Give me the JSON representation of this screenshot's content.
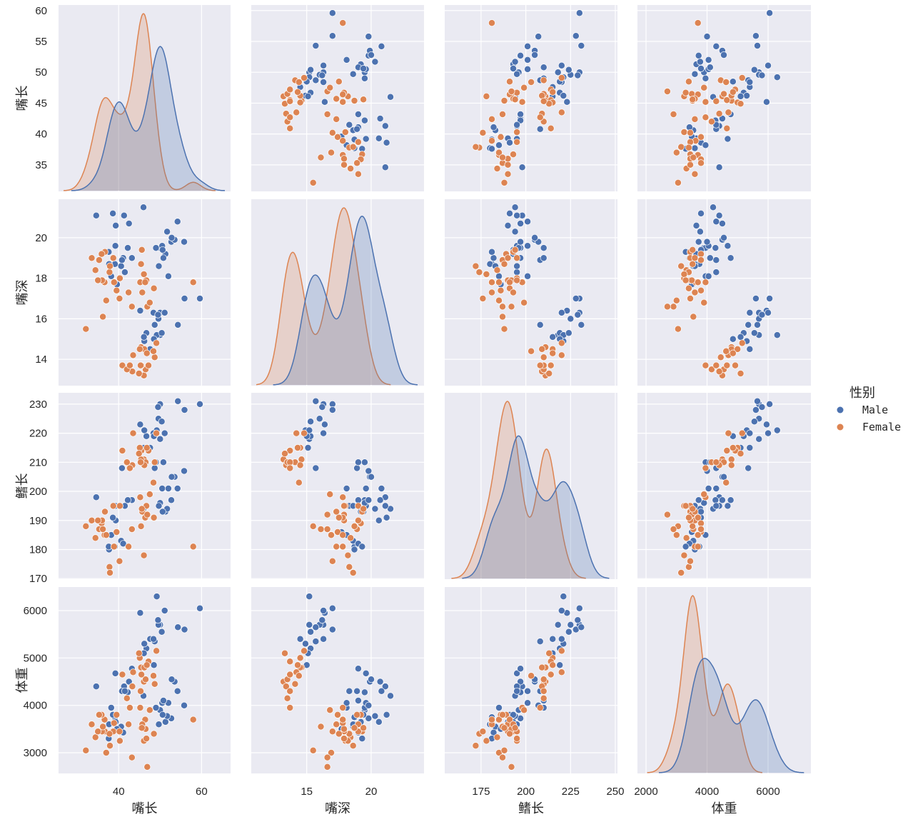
{
  "chart_data": {
    "type": "scatter",
    "subtype": "pairplot",
    "variables": [
      "嘴长",
      "嘴深",
      "鳍长",
      "体重"
    ],
    "axis_ranges": {
      "嘴长": [
        25.5,
        67
      ],
      "嘴深": [
        10.7,
        24.1
      ],
      "鳍长": [
        154.7,
        251.2
      ],
      "体重": [
        1719,
        7404
      ]
    },
    "y_ranges": {
      "嘴长": [
        30.7,
        60.9
      ],
      "嘴深": [
        12.7,
        21.9
      ],
      "鳍长": [
        169.8,
        233.9
      ],
      "体重": [
        2563,
        6497
      ]
    },
    "x_ticks": {
      "嘴长": [
        40,
        60
      ],
      "嘴深": [
        15,
        20
      ],
      "鳍长": [
        175,
        200,
        225,
        250
      ],
      "体重": [
        2000,
        4000,
        6000
      ]
    },
    "y_ticks": {
      "嘴长": [
        35,
        40,
        45,
        50,
        55,
        60
      ],
      "嘴深": [
        14,
        16,
        18,
        20
      ],
      "鳍长": [
        170,
        180,
        190,
        200,
        210,
        220,
        230
      ],
      "体重": [
        3000,
        4000,
        5000,
        6000
      ]
    },
    "diagonal": "kde",
    "grid": true,
    "background": "#eaeaf2",
    "legend": {
      "title": "性别",
      "placement": "right",
      "entries": [
        "Male",
        "Female"
      ]
    },
    "hue_colors": {
      "Male": "#4c72b0",
      "Female": "#dd8452"
    },
    "series": [
      {
        "name": "Male",
        "points": [
          [
            39.1,
            18.7,
            181,
            3750
          ],
          [
            39.3,
            20.6,
            190,
            3650
          ],
          [
            39.2,
            19.6,
            195,
            4675
          ],
          [
            38.6,
            21.2,
            191,
            3800
          ],
          [
            34.6,
            21.1,
            198,
            4400
          ],
          [
            42.5,
            20.7,
            197,
            4500
          ],
          [
            46.0,
            21.5,
            194,
            4200
          ],
          [
            37.7,
            18.7,
            180,
            3600
          ],
          [
            38.2,
            18.1,
            185,
            3950
          ],
          [
            40.6,
            18.6,
            183,
            3550
          ],
          [
            41.1,
            19.0,
            182,
            3425
          ],
          [
            43.2,
            19.0,
            197,
            4775
          ],
          [
            41.3,
            21.1,
            195,
            4400
          ],
          [
            39.6,
            17.7,
            186,
            3500
          ],
          [
            42.2,
            19.5,
            197,
            4275
          ],
          [
            40.8,
            18.9,
            208,
            4300
          ],
          [
            37.6,
            19.3,
            181,
            3300
          ],
          [
            41.5,
            18.3,
            195,
            4300
          ],
          [
            50.0,
            19.5,
            196,
            3900
          ],
          [
            51.3,
            19.2,
            193,
            3650
          ],
          [
            52.7,
            19.8,
            197,
            3725
          ],
          [
            53.5,
            19.9,
            205,
            4500
          ],
          [
            49.0,
            19.5,
            210,
            3950
          ],
          [
            50.5,
            19.6,
            201,
            4050
          ],
          [
            52.0,
            18.1,
            201,
            4050
          ],
          [
            50.8,
            19.0,
            210,
            4100
          ],
          [
            54.2,
            20.8,
            201,
            4300
          ],
          [
            49.7,
            18.6,
            195,
            3600
          ],
          [
            55.8,
            19.8,
            207,
            4000
          ],
          [
            51.7,
            20.3,
            194,
            3775
          ],
          [
            52.8,
            20.0,
            205,
            4550
          ],
          [
            50.6,
            19.4,
            193,
            3800
          ],
          [
            50.0,
            16.3,
            230,
            5700
          ],
          [
            48.7,
            15.7,
            208,
            5350
          ],
          [
            50.0,
            15.2,
            218,
            5700
          ],
          [
            47.6,
            14.5,
            215,
            5400
          ],
          [
            46.7,
            15.3,
            219,
            5200
          ],
          [
            46.2,
            14.9,
            221,
            5300
          ],
          [
            49.2,
            15.2,
            221,
            6300
          ],
          [
            48.4,
            16.3,
            220,
            5400
          ],
          [
            49.6,
            16.0,
            225,
            5700
          ],
          [
            45.2,
            16.4,
            223,
            5950
          ],
          [
            59.6,
            17.0,
            230,
            6050
          ],
          [
            51.1,
            16.3,
            220,
            6000
          ],
          [
            49.5,
            16.2,
            229,
            5800
          ],
          [
            55.9,
            17.0,
            228,
            5600
          ],
          [
            54.3,
            15.7,
            231,
            5650
          ],
          [
            48.5,
            15.0,
            219,
            4850
          ],
          [
            50.4,
            15.3,
            224,
            5550
          ],
          [
            46.1,
            15.1,
            215,
            5100
          ]
        ]
      },
      {
        "name": "Female",
        "points": [
          [
            39.5,
            17.4,
            186,
            3800
          ],
          [
            40.3,
            18.0,
            195,
            3250
          ],
          [
            36.7,
            19.3,
            193,
            3450
          ],
          [
            38.9,
            17.8,
            181,
            3625
          ],
          [
            36.6,
            17.8,
            185,
            3700
          ],
          [
            38.7,
            19.0,
            195,
            3450
          ],
          [
            34.4,
            18.4,
            184,
            3325
          ],
          [
            37.8,
            18.3,
            174,
            3400
          ],
          [
            35.9,
            19.2,
            189,
            3800
          ],
          [
            35.3,
            18.9,
            187,
            3800
          ],
          [
            37.0,
            16.9,
            185,
            3000
          ],
          [
            36.0,
            17.9,
            190,
            3450
          ],
          [
            33.5,
            19.0,
            190,
            3600
          ],
          [
            32.1,
            15.5,
            188,
            3050
          ],
          [
            35.0,
            17.9,
            190,
            3450
          ],
          [
            36.2,
            16.1,
            187,
            3550
          ],
          [
            37.9,
            18.6,
            172,
            3150
          ],
          [
            40.2,
            17.0,
            176,
            3450
          ],
          [
            46.5,
            17.9,
            192,
            3500
          ],
          [
            45.4,
            18.7,
            188,
            3525
          ],
          [
            45.2,
            17.8,
            198,
            3950
          ],
          [
            46.1,
            18.2,
            178,
            3250
          ],
          [
            46.7,
            17.9,
            195,
            3300
          ],
          [
            43.2,
            16.6,
            187,
            2900
          ],
          [
            46.4,
            17.8,
            191,
            3700
          ],
          [
            42.4,
            17.3,
            181,
            3600
          ],
          [
            48.5,
            17.5,
            191,
            3400
          ],
          [
            45.7,
            17.3,
            193,
            3600
          ],
          [
            58.0,
            17.8,
            181,
            3700
          ],
          [
            46.9,
            16.6,
            192,
            2700
          ],
          [
            47.5,
            16.8,
            199,
            3900
          ],
          [
            45.6,
            19.4,
            194,
            3525
          ],
          [
            46.1,
            13.2,
            211,
            4500
          ],
          [
            48.7,
            14.1,
            210,
            4450
          ],
          [
            46.5,
            13.5,
            210,
            4550
          ],
          [
            45.4,
            14.6,
            211,
            4800
          ],
          [
            43.3,
            13.4,
            209,
            4400
          ],
          [
            40.9,
            13.7,
            214,
            4650
          ],
          [
            45.5,
            13.7,
            214,
            4650
          ],
          [
            42.0,
            13.5,
            210,
            4150
          ],
          [
            46.2,
            14.5,
            209,
            4800
          ],
          [
            45.1,
            14.5,
            215,
            5000
          ],
          [
            47.2,
            13.7,
            214,
            4925
          ],
          [
            49.1,
            14.8,
            220,
            5150
          ],
          [
            43.5,
            14.2,
            220,
            4700
          ],
          [
            44.9,
            13.3,
            213,
            5100
          ],
          [
            46.8,
            14.3,
            215,
            4850
          ],
          [
            48.4,
            14.4,
            203,
            4625
          ],
          [
            45.3,
            13.7,
            210,
            4300
          ],
          [
            42.7,
            13.7,
            208,
            3950
          ]
        ]
      }
    ]
  }
}
